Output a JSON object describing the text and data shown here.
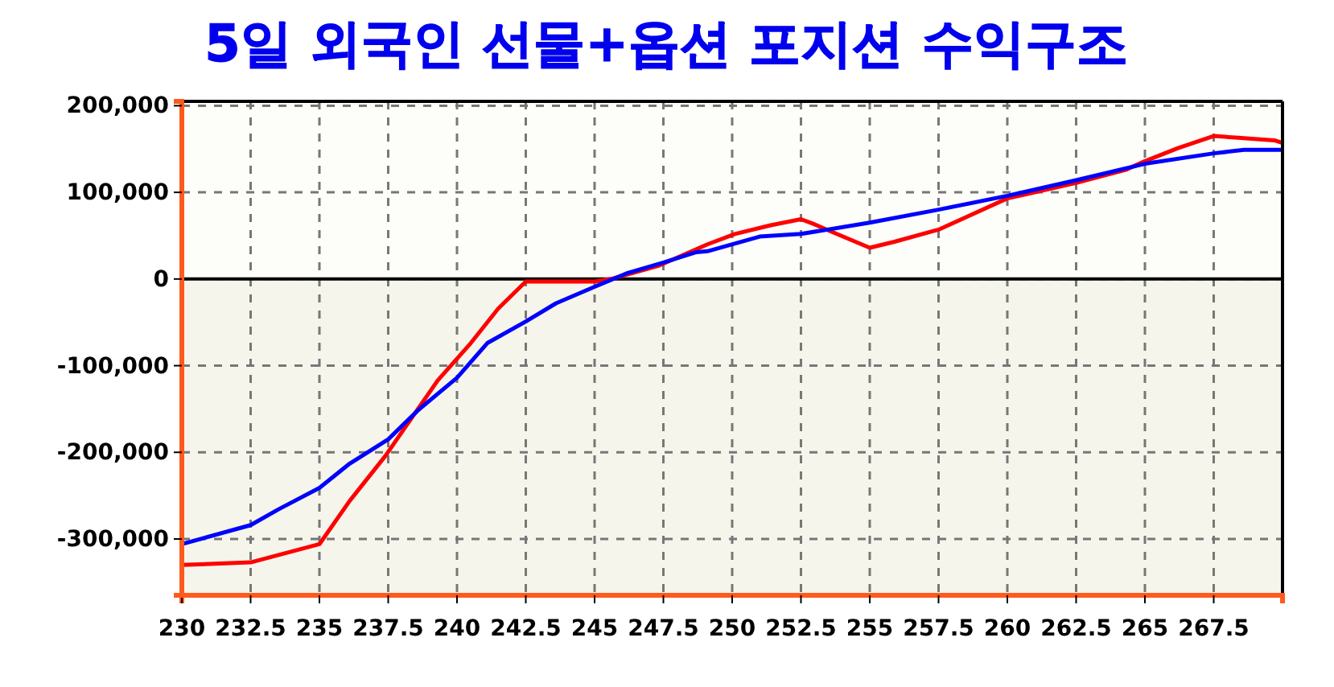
{
  "chart_data": {
    "type": "line",
    "title": "5일 외국인 선물+옵션 포지션 수익구조",
    "xlim": [
      230,
      270
    ],
    "xticks": [
      230,
      232.5,
      235,
      237.5,
      240,
      242.5,
      245,
      247.5,
      250,
      252.5,
      255,
      257.5,
      260,
      262.5,
      265,
      267.5
    ],
    "ylim": [
      -365000,
      205000
    ],
    "yticks": [
      {
        "value": -300000,
        "label": "-300,000"
      },
      {
        "value": -200000,
        "label": "-200,000"
      },
      {
        "value": -100000,
        "label": "-100,000"
      },
      {
        "value": 0,
        "label": "0"
      },
      {
        "value": 100000,
        "label": "100,000"
      },
      {
        "value": 200000,
        "label": "200,000"
      }
    ],
    "grid": true,
    "line_style": "solid",
    "bands": [
      {
        "axis": "y",
        "from": -365000,
        "to": 0,
        "color": "#f6f5ec"
      }
    ],
    "ref_lines": [
      {
        "axis": "y",
        "value": 0,
        "color": "#000000"
      }
    ],
    "series": [
      {
        "color": "#ff0000",
        "x": [
          230,
          232.5,
          235,
          236.1,
          237.4,
          239.3,
          240.5,
          241.5,
          242.5,
          245,
          245.6,
          247.3,
          249.1,
          250.1,
          251.4,
          252.5,
          253,
          253.8,
          255,
          255.9,
          257.5,
          260,
          262.5,
          264.3,
          265,
          266.2,
          267.5,
          268.4,
          269.7,
          270
        ],
        "values": [
          -330000,
          -327000,
          -306000,
          -256000,
          -204000,
          -117000,
          -74000,
          -34000,
          -3000,
          -3000,
          0,
          15000,
          40000,
          52000,
          62000,
          69000,
          63000,
          52000,
          36000,
          43000,
          57000,
          93000,
          111000,
          126000,
          136000,
          151000,
          165000,
          163000,
          160000,
          157000
        ]
      },
      {
        "color": "#0000ff",
        "x": [
          230,
          232.5,
          233.5,
          235,
          236.1,
          237.5,
          238.6,
          240,
          241.1,
          242.5,
          243.6,
          245,
          246.2,
          247.5,
          248.7,
          249.1,
          251,
          252.5,
          255,
          257.5,
          260,
          262.5,
          265,
          267.5,
          268.6,
          270
        ],
        "values": [
          -306000,
          -284000,
          -266000,
          -241000,
          -213000,
          -185000,
          -151000,
          -114000,
          -74000,
          -49000,
          -28000,
          -9000,
          7000,
          19000,
          31000,
          32000,
          49000,
          52000,
          65000,
          80000,
          96000,
          114000,
          133000,
          145000,
          149000,
          149000
        ]
      }
    ]
  }
}
